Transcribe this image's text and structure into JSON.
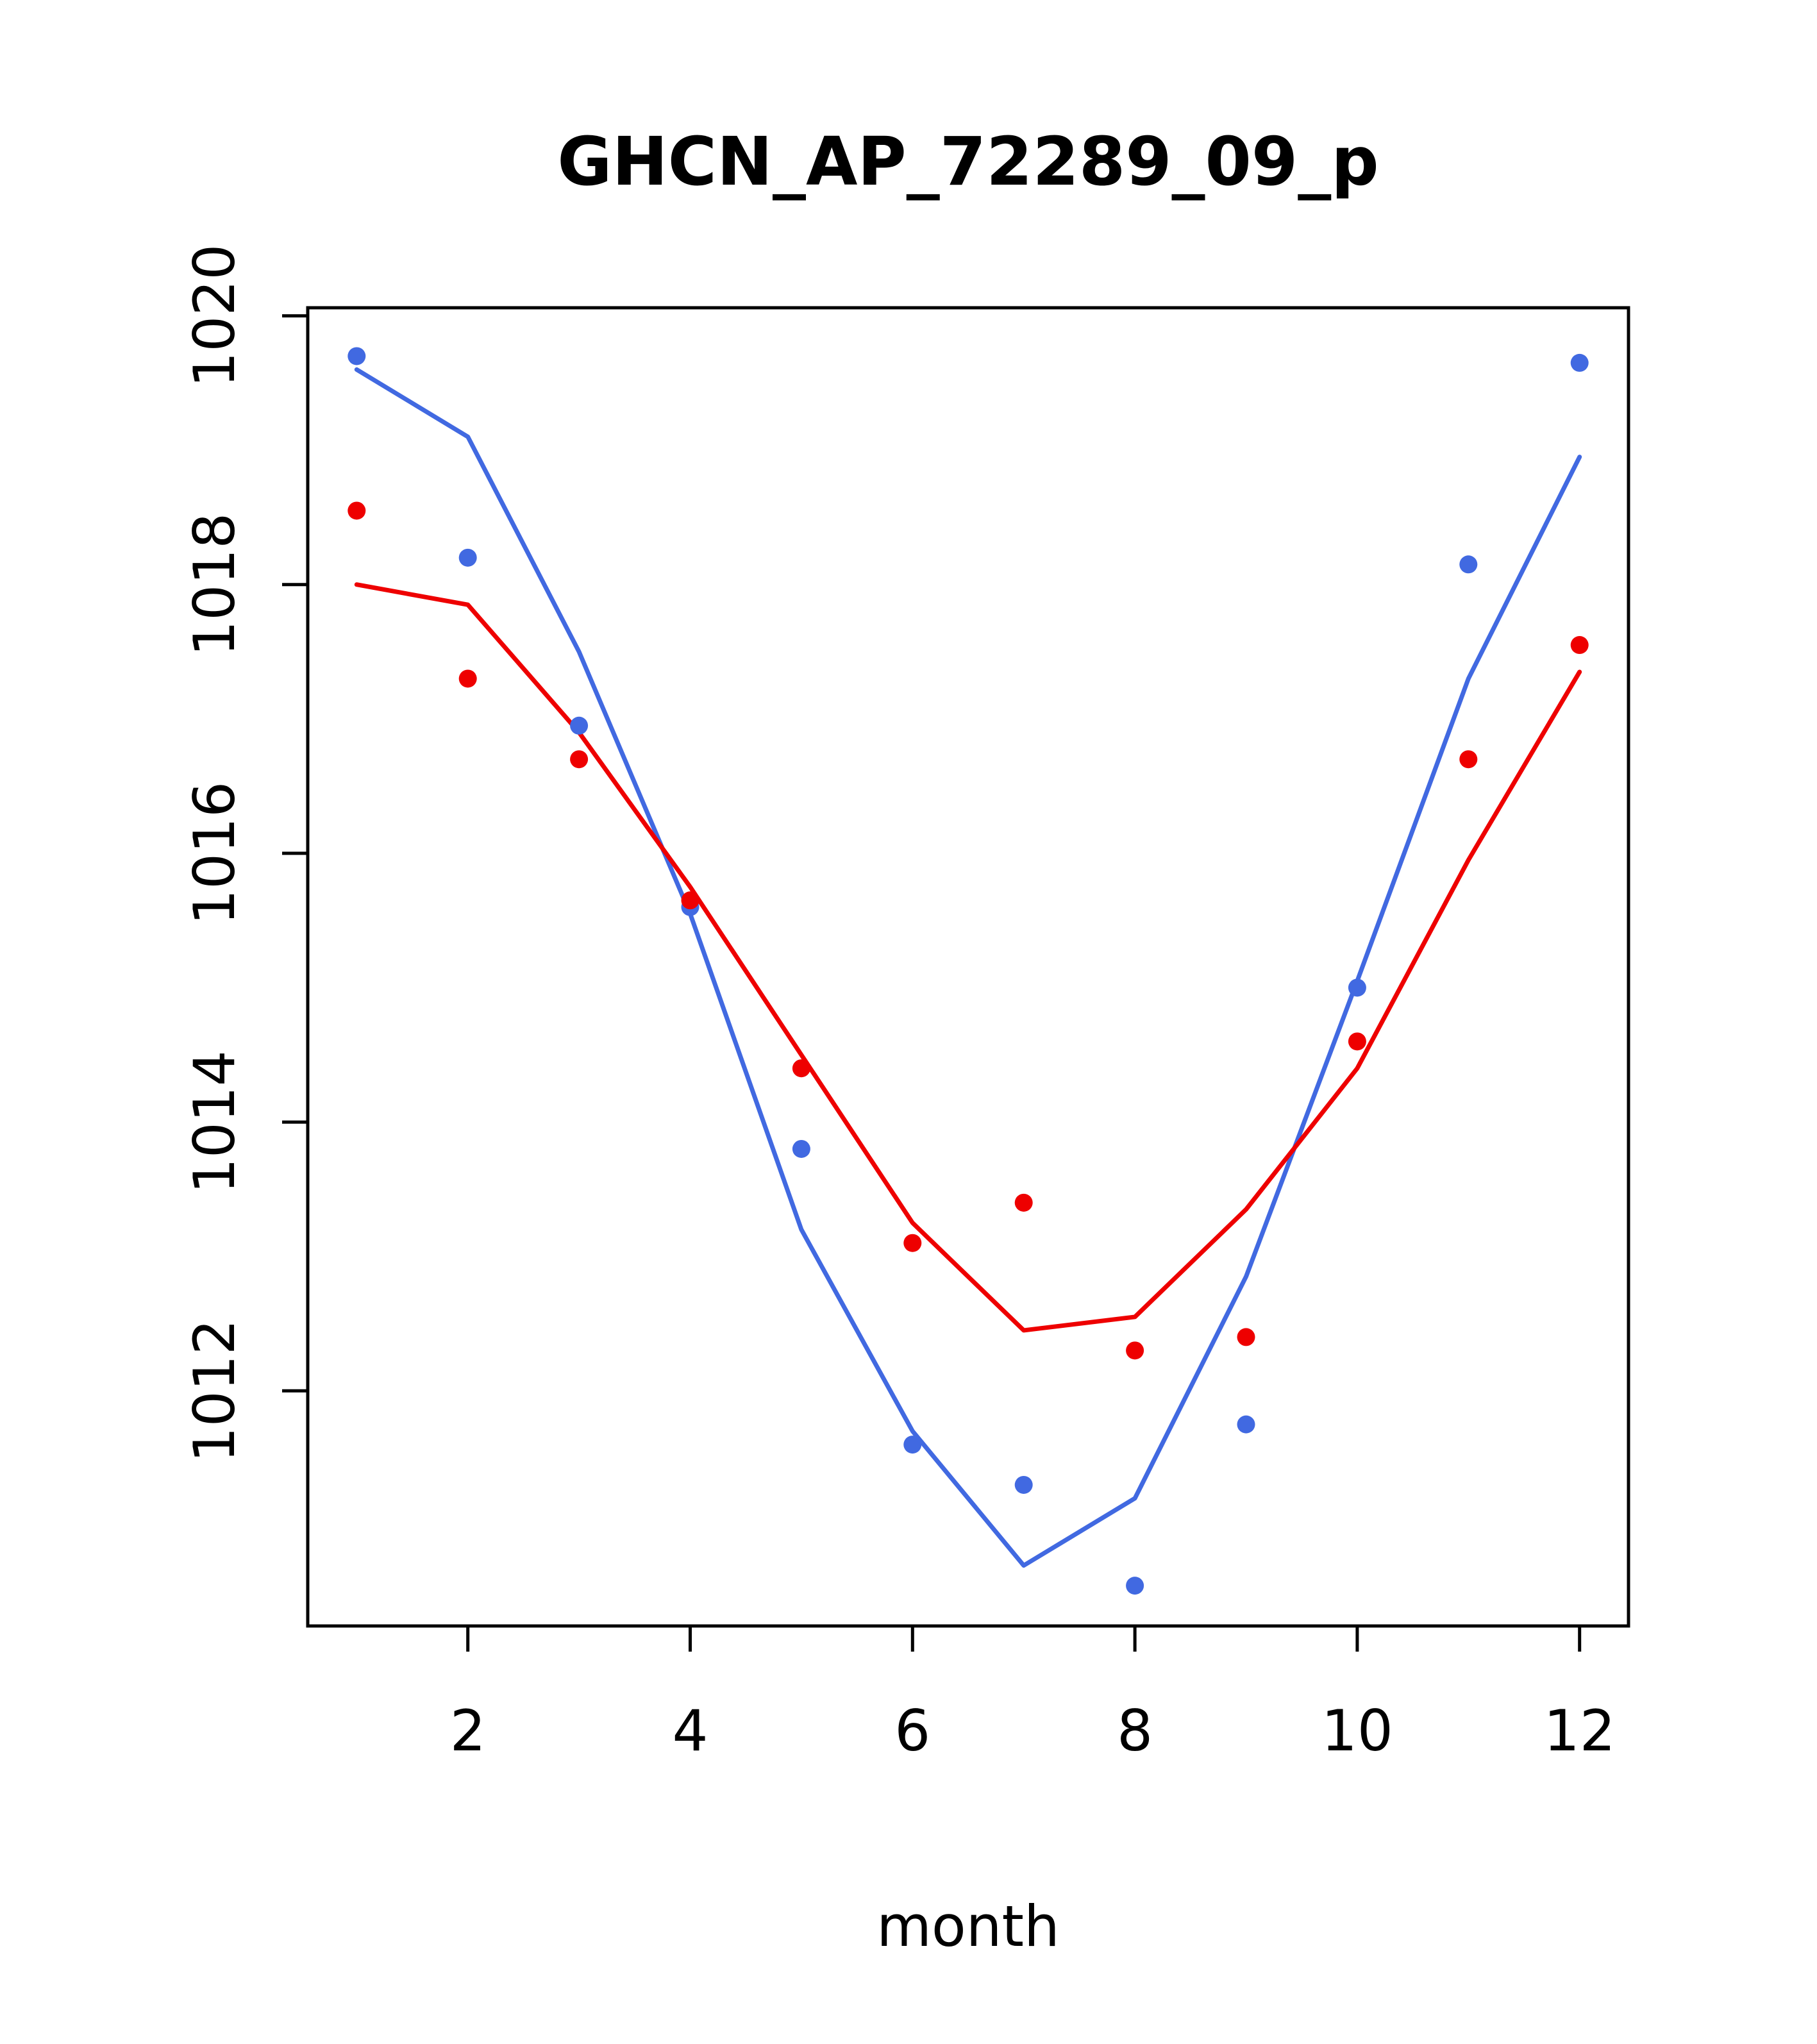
{
  "chart_data": {
    "type": "line",
    "title": "GHCN_AP_72289_09_p",
    "xlabel": "month",
    "ylabel": "",
    "x": [
      1,
      2,
      3,
      4,
      5,
      6,
      7,
      8,
      9,
      10,
      11,
      12
    ],
    "xlim": [
      0.56,
      12.44
    ],
    "ylim": [
      1010.25,
      1020.06
    ],
    "xticks": [
      2,
      4,
      6,
      8,
      10,
      12
    ],
    "yticks": [
      1012,
      1014,
      1016,
      1018,
      1020
    ],
    "grid": false,
    "legend": "none",
    "colors": {
      "series1": "#4169e1",
      "series2": "#ee0000",
      "axis": "#000000",
      "background": "#ffffff"
    },
    "series": [
      {
        "name": "series1-smoothed-line",
        "draw": "line",
        "color": "#4169e1",
        "values": [
          1019.6,
          1019.1,
          1017.5,
          1015.55,
          1013.2,
          1011.7,
          1010.7,
          1011.2,
          1012.85,
          1015.05,
          1017.3,
          1018.95
        ]
      },
      {
        "name": "series2-smoothed-line",
        "draw": "line",
        "color": "#ee0000",
        "values": [
          1018.0,
          1017.85,
          1016.9,
          1015.75,
          1014.5,
          1013.25,
          1012.45,
          1012.55,
          1013.35,
          1014.4,
          1015.95,
          1017.35
        ]
      },
      {
        "name": "series1-points",
        "draw": "scatter",
        "color": "#4169e1",
        "values": [
          1019.7,
          1018.2,
          1016.95,
          1015.6,
          1013.8,
          1011.6,
          1011.3,
          1010.55,
          1011.75,
          1015.0,
          1018.15,
          1019.65
        ]
      },
      {
        "name": "series2-points",
        "draw": "scatter",
        "color": "#ee0000",
        "values": [
          1018.55,
          1017.3,
          1016.7,
          1015.65,
          1014.4,
          1013.1,
          1013.4,
          1012.3,
          1012.4,
          1014.6,
          1016.7,
          1017.55
        ]
      }
    ]
  }
}
